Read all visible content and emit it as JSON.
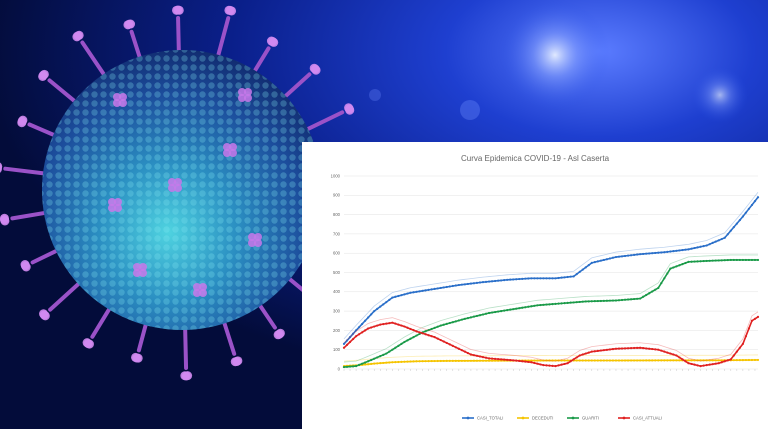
{
  "background": {
    "subject": "coronavirus-illustration",
    "colors": {
      "deep": "#04103a",
      "glow": "#2a52e8",
      "spike": "#c070e0"
    }
  },
  "chart_data": {
    "type": "line",
    "title": "Curva Epidemica COVID-19 - Asl Caserta",
    "ylabel": "",
    "xlabel": "",
    "ylim": [
      0,
      1000
    ],
    "yticks": [
      0,
      100,
      200,
      300,
      400,
      500,
      600,
      700,
      800,
      900,
      1000
    ],
    "grid": true,
    "legend_position": "bottom",
    "series": [
      {
        "name": "CASI_TOTALI",
        "color": "#2a6fc9",
        "anchors": [
          [
            0,
            130
          ],
          [
            4,
            200
          ],
          [
            10,
            300
          ],
          [
            16,
            370
          ],
          [
            22,
            395
          ],
          [
            30,
            415
          ],
          [
            38,
            435
          ],
          [
            46,
            450
          ],
          [
            54,
            462
          ],
          [
            62,
            470
          ],
          [
            70,
            470
          ],
          [
            76,
            480
          ],
          [
            82,
            550
          ],
          [
            90,
            580
          ],
          [
            98,
            595
          ],
          [
            106,
            605
          ],
          [
            114,
            620
          ],
          [
            120,
            640
          ],
          [
            126,
            680
          ],
          [
            132,
            790
          ],
          [
            137,
            890
          ]
        ]
      },
      {
        "name": "DECEDUTI",
        "color": "#f5c400",
        "anchors": [
          [
            0,
            15
          ],
          [
            5,
            20
          ],
          [
            10,
            28
          ],
          [
            16,
            35
          ],
          [
            24,
            40
          ],
          [
            34,
            42
          ],
          [
            50,
            43
          ],
          [
            70,
            44
          ],
          [
            90,
            44
          ],
          [
            110,
            45
          ],
          [
            125,
            45
          ],
          [
            137,
            47
          ]
        ]
      },
      {
        "name": "GUARITI",
        "color": "#1a9a48",
        "anchors": [
          [
            0,
            10
          ],
          [
            4,
            15
          ],
          [
            8,
            40
          ],
          [
            14,
            80
          ],
          [
            20,
            140
          ],
          [
            26,
            190
          ],
          [
            32,
            225
          ],
          [
            40,
            260
          ],
          [
            48,
            290
          ],
          [
            56,
            310
          ],
          [
            64,
            330
          ],
          [
            72,
            340
          ],
          [
            80,
            350
          ],
          [
            90,
            355
          ],
          [
            98,
            365
          ],
          [
            104,
            420
          ],
          [
            108,
            520
          ],
          [
            114,
            555
          ],
          [
            120,
            560
          ],
          [
            128,
            565
          ],
          [
            137,
            565
          ]
        ]
      },
      {
        "name": "CASI_ATTUALI",
        "color": "#e02020",
        "anchors": [
          [
            0,
            110
          ],
          [
            4,
            170
          ],
          [
            8,
            210
          ],
          [
            12,
            230
          ],
          [
            16,
            240
          ],
          [
            20,
            220
          ],
          [
            24,
            195
          ],
          [
            30,
            165
          ],
          [
            36,
            120
          ],
          [
            42,
            75
          ],
          [
            48,
            55
          ],
          [
            56,
            45
          ],
          [
            62,
            35
          ],
          [
            66,
            20
          ],
          [
            70,
            15
          ],
          [
            74,
            30
          ],
          [
            78,
            70
          ],
          [
            82,
            90
          ],
          [
            90,
            105
          ],
          [
            98,
            110
          ],
          [
            104,
            100
          ],
          [
            110,
            70
          ],
          [
            114,
            30
          ],
          [
            118,
            15
          ],
          [
            124,
            30
          ],
          [
            128,
            50
          ],
          [
            132,
            130
          ],
          [
            135,
            250
          ],
          [
            137,
            270
          ]
        ]
      }
    ],
    "x_count": 138
  }
}
